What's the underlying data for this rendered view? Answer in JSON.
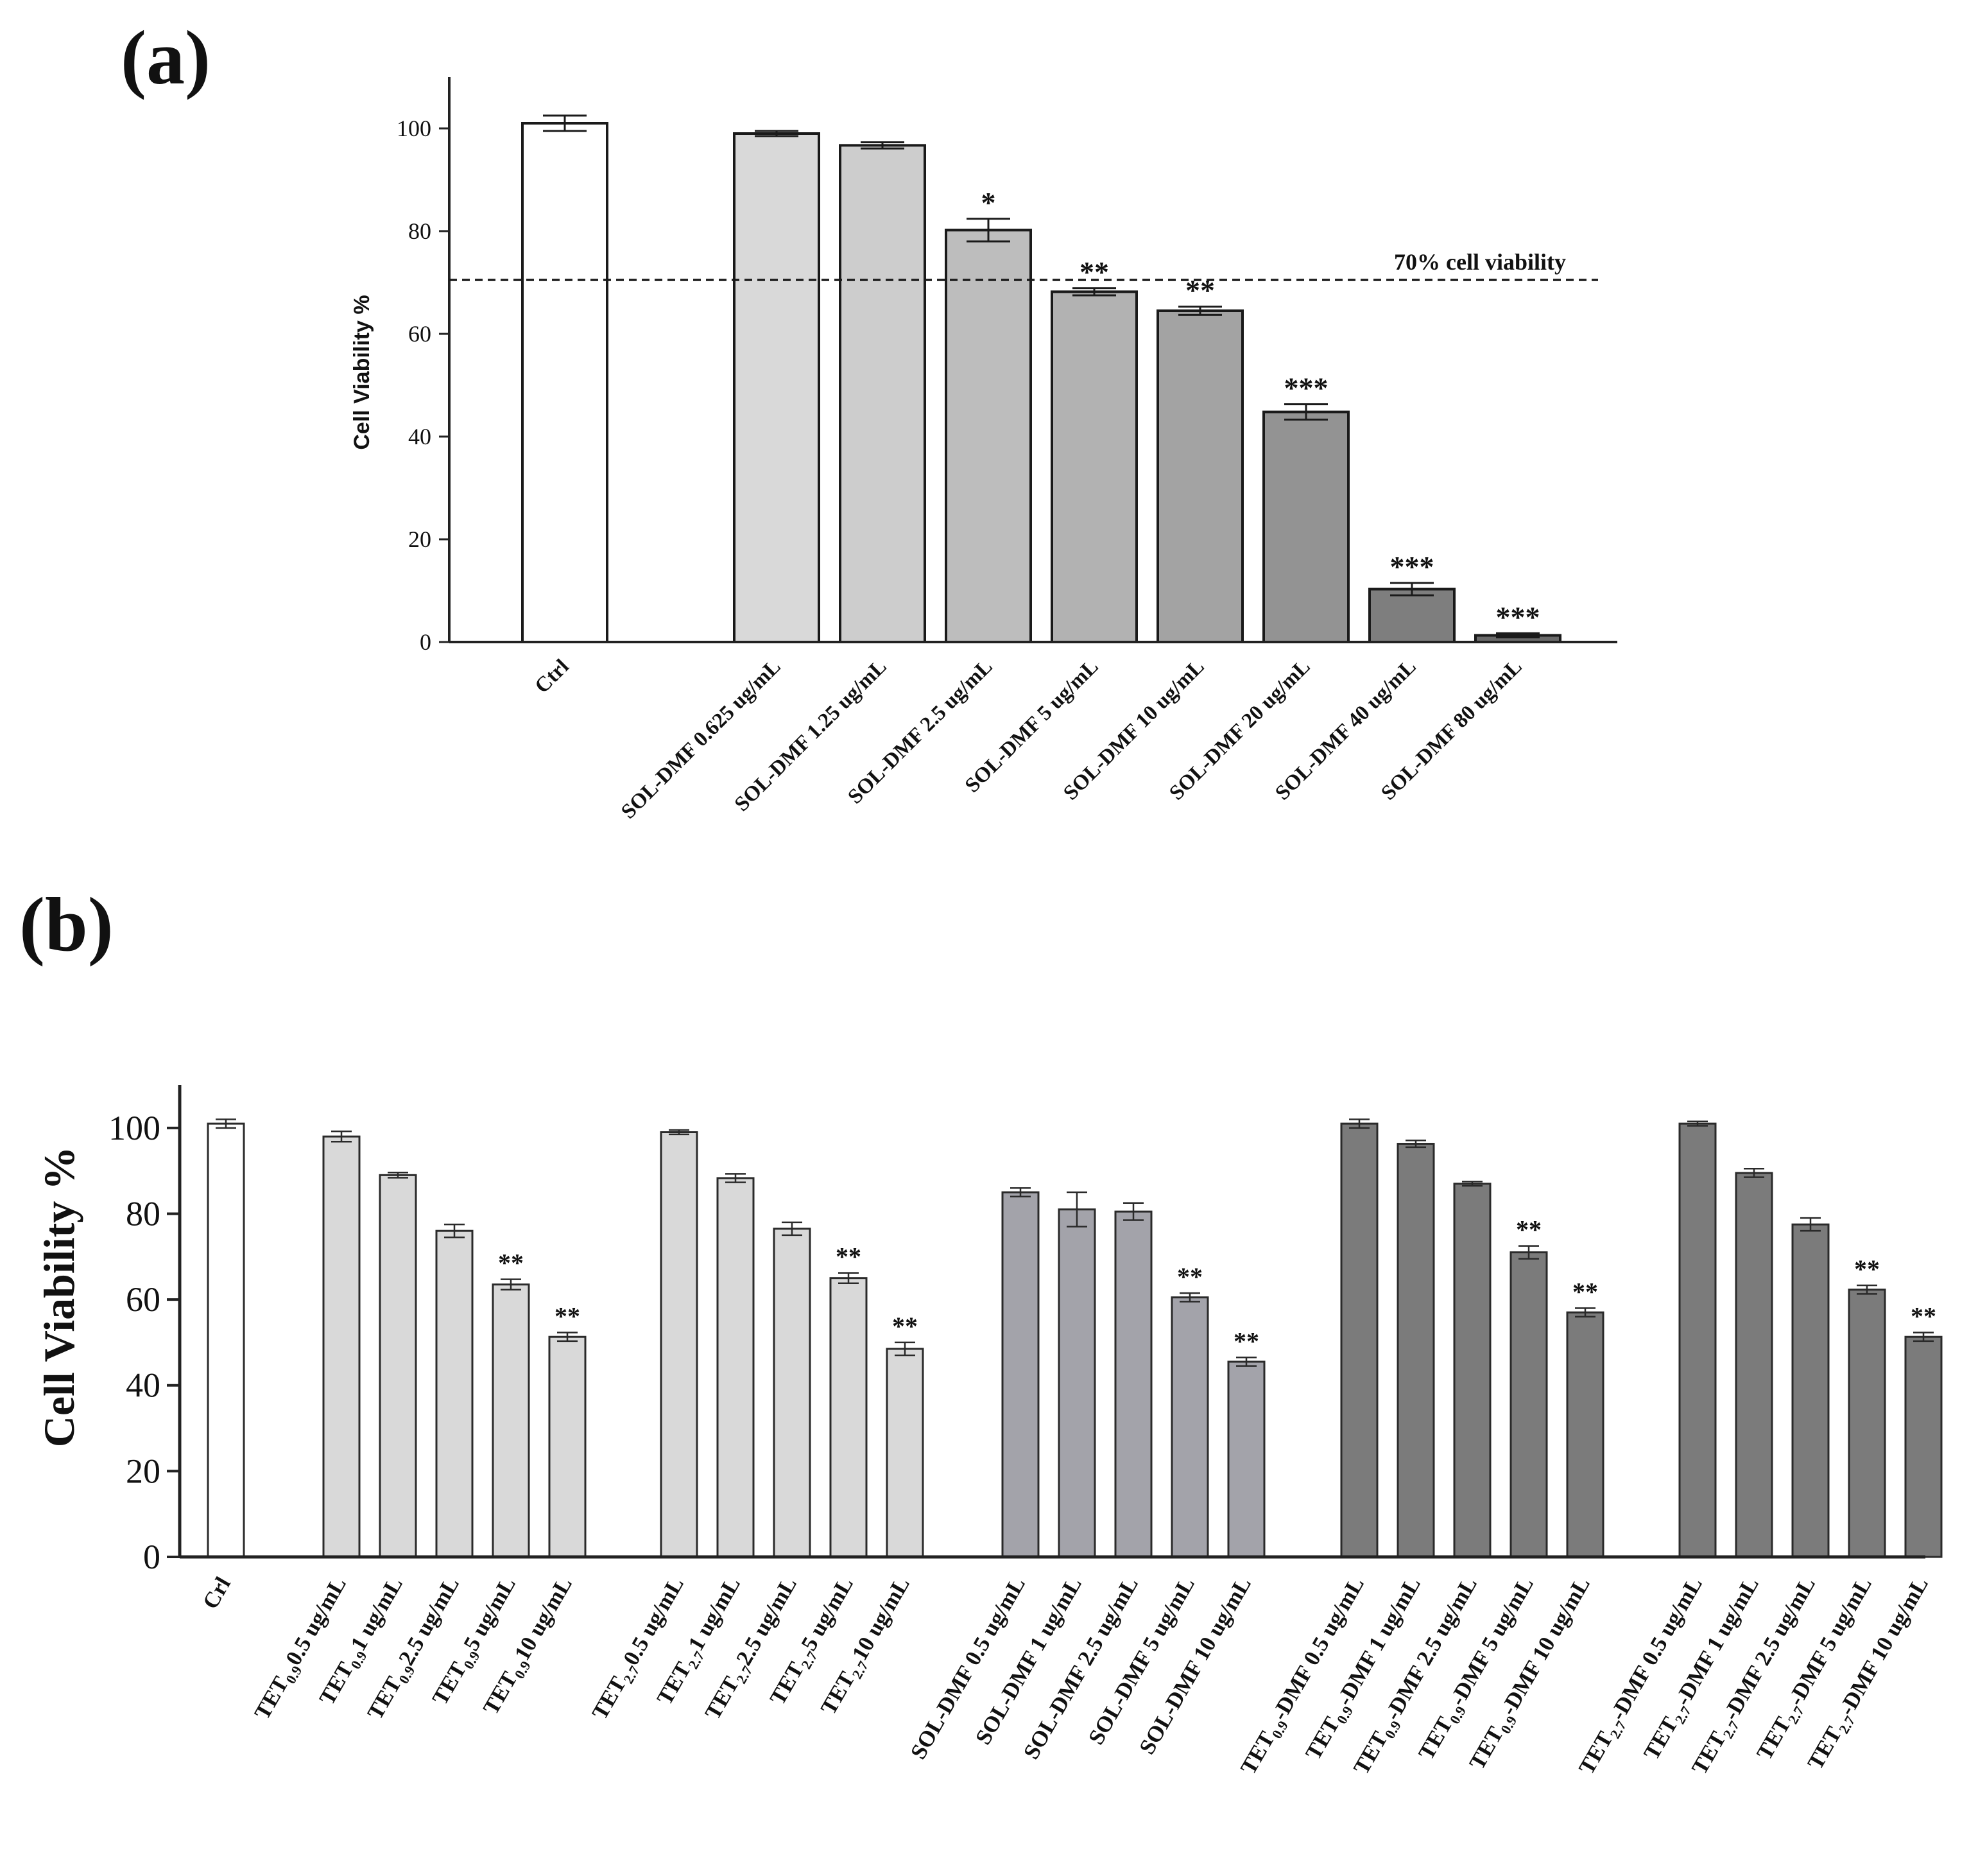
{
  "chart_data": [
    {
      "type": "bar",
      "panel_label": "(a)",
      "ylabel": "Cell Viability %",
      "ylim": [
        0,
        110
      ],
      "yticks": [
        0,
        20,
        40,
        60,
        80,
        100
      ],
      "reference_line": {
        "value": 70.5,
        "label": "70% cell viability",
        "style": "dashed"
      },
      "bars": [
        {
          "label": "Ctrl",
          "value": 101,
          "err": 1.5,
          "sig": "",
          "color": "#ffffff"
        },
        {
          "label": "SOL-DMF 0.625 ug/mL",
          "value": 99,
          "err": 0.5,
          "sig": "",
          "color": "#d9d9d9"
        },
        {
          "label": "SOL-DMF 1.25 ug/mL",
          "value": 96.7,
          "err": 0.6,
          "sig": "",
          "color": "#cdcdcd"
        },
        {
          "label": "SOL-DMF 2.5 ug/mL",
          "value": 80.2,
          "err": 2.2,
          "sig": "*",
          "color": "#bdbdbd"
        },
        {
          "label": "SOL-DMF 5 ug/mL",
          "value": 68.2,
          "err": 0.7,
          "sig": "**",
          "color": "#b2b2b2"
        },
        {
          "label": "SOL-DMF 10 ug/mL",
          "value": 64.5,
          "err": 0.8,
          "sig": "**",
          "color": "#a3a3a3"
        },
        {
          "label": "SOL-DMF 20 ug/mL",
          "value": 44.8,
          "err": 1.5,
          "sig": "***",
          "color": "#939393"
        },
        {
          "label": "SOL-DMF 40 ug/mL",
          "value": 10.3,
          "err": 1.2,
          "sig": "***",
          "color": "#7e7e7e"
        },
        {
          "label": "SOL-DMF 80 ug/mL",
          "value": 1.3,
          "err": 0.4,
          "sig": "***",
          "color": "#6a6a6a"
        }
      ]
    },
    {
      "type": "bar",
      "panel_label": "(b)",
      "ylabel": "Cell Viability %",
      "ylim": [
        0,
        110
      ],
      "yticks": [
        0,
        20,
        40,
        60,
        80,
        100
      ],
      "bars": [
        {
          "label": "Crl",
          "value": 101,
          "err": 1,
          "sig": "",
          "color": "#ffffff"
        },
        {
          "label": "TET0.9 0.5 ug/mL",
          "value": 98,
          "err": 1.2,
          "sig": "",
          "color": "#d9d9d9",
          "sub": "0.9",
          "pre": "TET",
          "post": "0.5 ug/mL"
        },
        {
          "label": "TET0.9 1 ug/mL",
          "value": 89,
          "err": 0.6,
          "sig": "",
          "color": "#d9d9d9",
          "sub": "0.9",
          "pre": "TET",
          "post": "1 ug/mL"
        },
        {
          "label": "TET0.9 2.5 ug/mL",
          "value": 76,
          "err": 1.5,
          "sig": "",
          "color": "#d9d9d9",
          "sub": "0.9",
          "pre": "TET",
          "post": "2.5 ug/mL"
        },
        {
          "label": "TET0.9 5 ug/mL",
          "value": 63.5,
          "err": 1.2,
          "sig": "**",
          "color": "#d9d9d9",
          "sub": "0.9",
          "pre": "TET",
          "post": "5 ug/mL"
        },
        {
          "label": "TET0.9 10 ug/mL",
          "value": 51.3,
          "err": 1,
          "sig": "**",
          "color": "#d9d9d9",
          "sub": "0.9",
          "pre": "TET",
          "post": "10 ug/mL"
        },
        {
          "label": "TET2.7 0.5 ug/mL",
          "value": 99,
          "err": 0.5,
          "sig": "",
          "color": "#d9d9d9",
          "sub": "2.7",
          "pre": "TET",
          "post": "0.5 ug/mL"
        },
        {
          "label": "TET2.7 1 ug/mL",
          "value": 88.3,
          "err": 1,
          "sig": "",
          "color": "#d9d9d9",
          "sub": "2.7",
          "pre": "TET",
          "post": "1 ug/mL"
        },
        {
          "label": "TET2.7 2.5 ug/mL",
          "value": 76.5,
          "err": 1.5,
          "sig": "",
          "color": "#d9d9d9",
          "sub": "2.7",
          "pre": "TET",
          "post": "2.5 ug/mL"
        },
        {
          "label": "TET2.7 5 ug/mL",
          "value": 65,
          "err": 1.2,
          "sig": "**",
          "color": "#d9d9d9",
          "sub": "2.7",
          "pre": "TET",
          "post": "5 ug/mL"
        },
        {
          "label": "TET2.7 10 ug/mL",
          "value": 48.5,
          "err": 1.5,
          "sig": "**",
          "color": "#d9d9d9",
          "sub": "2.7",
          "pre": "TET",
          "post": "10 ug/mL"
        },
        {
          "label": "SOL-DMF 0.5 ug/mL",
          "value": 85,
          "err": 1,
          "sig": "",
          "color": "#a3a3aa"
        },
        {
          "label": "SOL-DMF 1 ug/mL",
          "value": 81,
          "err": 4,
          "sig": "",
          "color": "#a3a3aa"
        },
        {
          "label": "SOL-DMF 2.5 ug/mL",
          "value": 80.5,
          "err": 2,
          "sig": "",
          "color": "#a3a3aa"
        },
        {
          "label": "SOL-DMF 5 ug/mL",
          "value": 60.5,
          "err": 1,
          "sig": "**",
          "color": "#a3a3aa"
        },
        {
          "label": "SOL-DMF 10 ug/mL",
          "value": 45.5,
          "err": 1,
          "sig": "**",
          "color": "#a3a3aa"
        },
        {
          "label": "TET0.9-DMF 0.5 ug/mL",
          "value": 101,
          "err": 1,
          "sig": "",
          "color": "#7b7b7b",
          "sub": "0.9",
          "pre": "TET",
          "post": "-DMF 0.5 ug/mL"
        },
        {
          "label": "TET0.9-DMF 1 ug/mL",
          "value": 96.3,
          "err": 0.8,
          "sig": "",
          "color": "#7b7b7b",
          "sub": "0.9",
          "pre": "TET",
          "post": "-DMF 1 ug/mL"
        },
        {
          "label": "TET0.9-DMF 2.5 ug/mL",
          "value": 87,
          "err": 0.5,
          "sig": "",
          "color": "#7b7b7b",
          "sub": "0.9",
          "pre": "TET",
          "post": "-DMF 2.5 ug/mL"
        },
        {
          "label": "TET0.9-DMF 5 ug/mL",
          "value": 71,
          "err": 1.5,
          "sig": "**",
          "color": "#7b7b7b",
          "sub": "0.9",
          "pre": "TET",
          "post": "-DMF 5 ug/mL"
        },
        {
          "label": "TET0.9-DMF 10 ug/mL",
          "value": 57,
          "err": 1,
          "sig": "**",
          "color": "#7b7b7b",
          "sub": "0.9",
          "pre": "TET",
          "post": "-DMF 10 ug/mL"
        },
        {
          "label": "TET2.7-DMF 0.5 ug/mL",
          "value": 101,
          "err": 0.5,
          "sig": "",
          "color": "#7b7b7b",
          "sub": "2.7",
          "pre": "TET",
          "post": "-DMF 0.5 ug/mL"
        },
        {
          "label": "TET2.7-DMF 1 ug/mL",
          "value": 89.5,
          "err": 1,
          "sig": "",
          "color": "#7b7b7b",
          "sub": "2.7",
          "pre": "TET",
          "post": "-DMF 1 ug/mL"
        },
        {
          "label": "TET2.7-DMF 2.5 ug/mL",
          "value": 77.5,
          "err": 1.5,
          "sig": "",
          "color": "#7b7b7b",
          "sub": "2.7",
          "pre": "TET",
          "post": "-DMF 2.5 ug/mL"
        },
        {
          "label": "TET2.7-DMF 5 ug/mL",
          "value": 62.3,
          "err": 1,
          "sig": "**",
          "color": "#7b7b7b",
          "sub": "2.7",
          "pre": "TET",
          "post": "-DMF 5 ug/mL"
        },
        {
          "label": "TET2.7-DMF 10 ug/mL",
          "value": 51.3,
          "err": 1,
          "sig": "**",
          "color": "#7b7b7b",
          "sub": "2.7",
          "pre": "TET",
          "post": "-DMF 10 ug/mL"
        }
      ]
    }
  ]
}
